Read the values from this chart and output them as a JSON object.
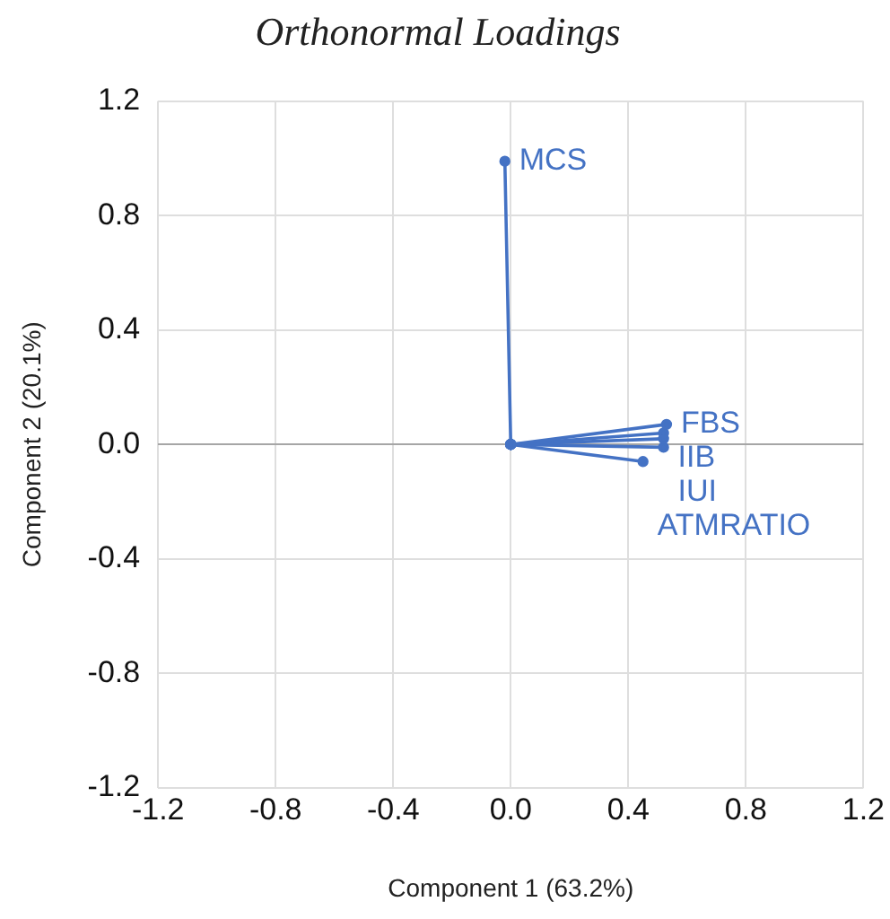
{
  "chart_data": {
    "type": "line",
    "title": "Orthonormal Loadings",
    "xlabel": "Component 1 (63.2%)",
    "ylabel": "Component 2 (20.1%)",
    "xlim": [
      -1.2,
      1.2
    ],
    "xticks": [
      {
        "value": -1.2,
        "label": "-1.2"
      },
      {
        "value": -0.8,
        "label": "-0.8"
      },
      {
        "value": -0.4,
        "label": "-0.4"
      },
      {
        "value": 0,
        "label": "0.0"
      },
      {
        "value": 0.4,
        "label": "0.4"
      },
      {
        "value": 0.8,
        "label": "0.8"
      },
      {
        "value": 1.2,
        "label": "1.2"
      }
    ],
    "ylim": [
      -1.2,
      1.2
    ],
    "yticks": [
      {
        "value": -1.2,
        "label": "-1.2"
      },
      {
        "value": -0.8,
        "label": "-0.8"
      },
      {
        "value": -0.4,
        "label": "-0.4"
      },
      {
        "value": 0,
        "label": "0.0"
      },
      {
        "value": 0.4,
        "label": "0.4"
      },
      {
        "value": 0.8,
        "label": "0.8"
      },
      {
        "value": 1.2,
        "label": "1.2"
      }
    ],
    "grid": true,
    "legend": false,
    "marker": "circle",
    "line_style": "solid",
    "series": [
      {
        "name": "MCS",
        "color": "#4472c4",
        "x": [
          0,
          -0.02
        ],
        "values": [
          0,
          0.99
        ]
      },
      {
        "name": "FBS",
        "color": "#4472c4",
        "x": [
          0,
          0.53
        ],
        "values": [
          0,
          0.07
        ]
      },
      {
        "name": "IIB",
        "color": "#4472c4",
        "x": [
          0,
          0.52
        ],
        "values": [
          0,
          0.04
        ]
      },
      {
        "color": "#4472c4",
        "x": [
          0,
          0.52
        ],
        "values": [
          0,
          0.02
        ]
      },
      {
        "name": "IUI",
        "color": "#4472c4",
        "x": [
          0,
          0.52
        ],
        "values": [
          0,
          -0.01
        ]
      },
      {
        "name": "ATMRATIO",
        "color": "#4472c4",
        "x": [
          0,
          0.45
        ],
        "values": [
          0,
          -0.06
        ]
      }
    ]
  }
}
